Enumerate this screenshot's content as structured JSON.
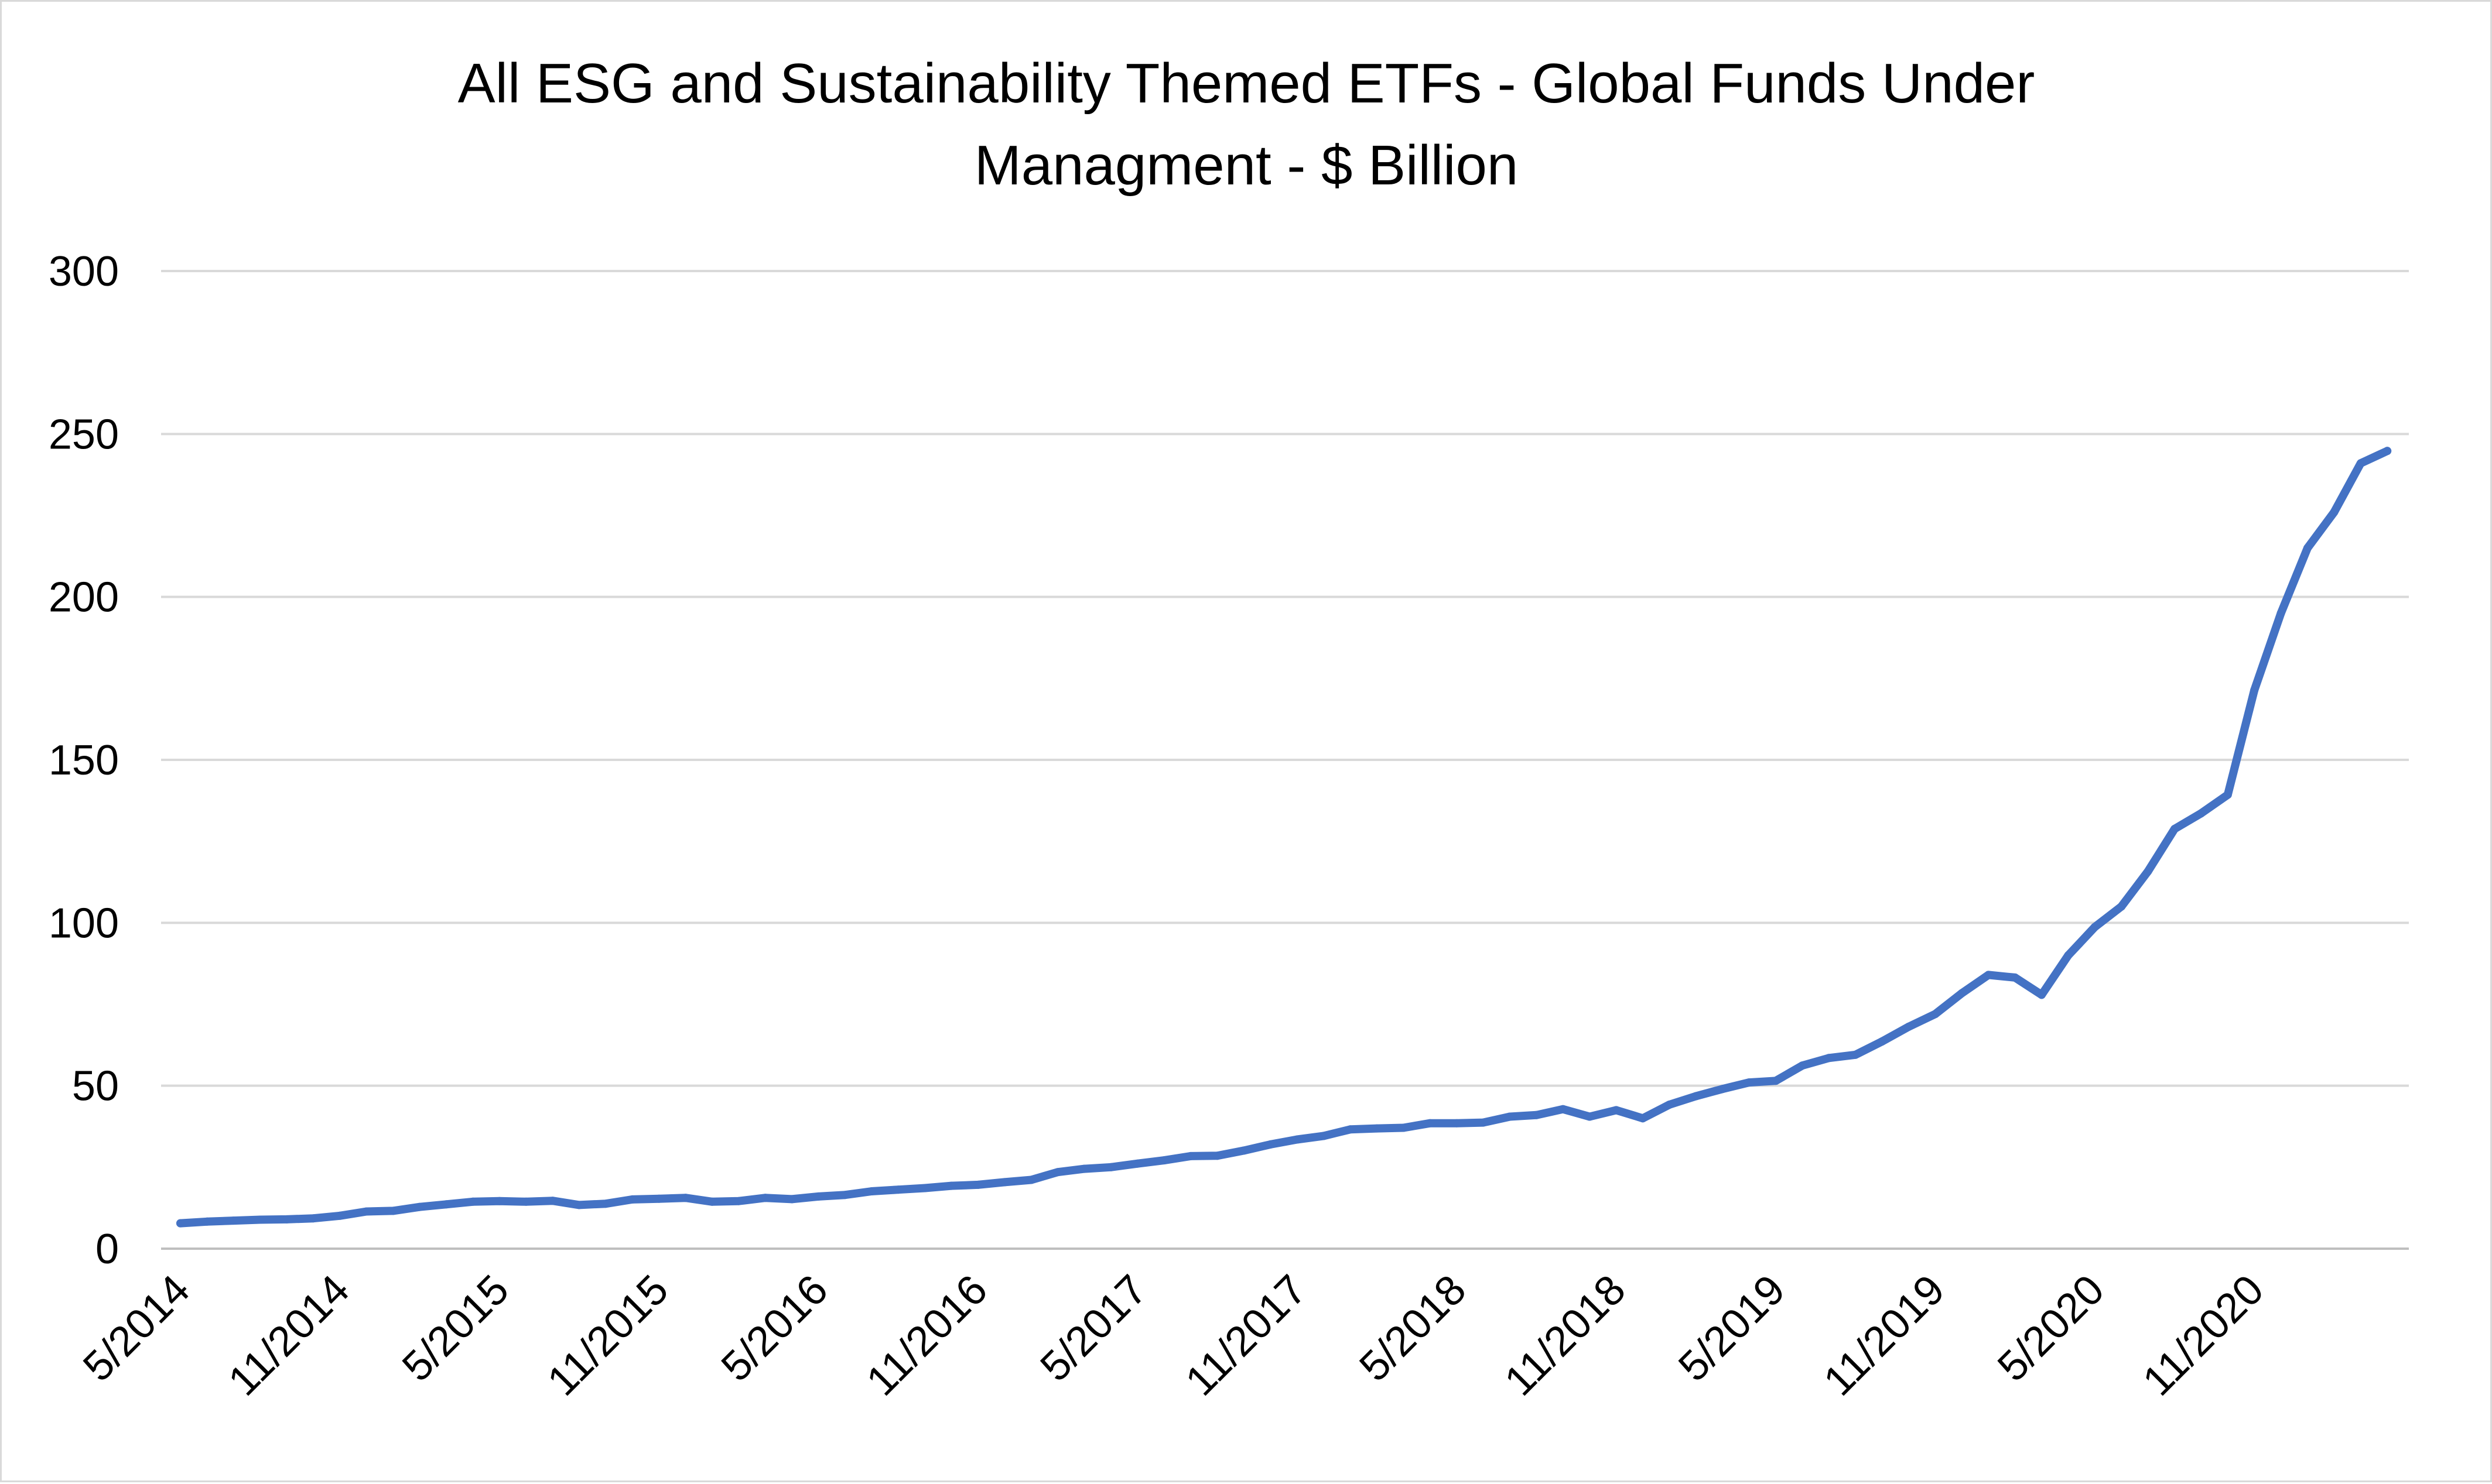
{
  "chart_data": {
    "type": "line",
    "title_line1": "All ESG and Sustainability Themed ETFs - Global Funds Under",
    "title_line2": "Managment - $ Billion",
    "xlabel": "",
    "ylabel": "",
    "ylim": [
      0,
      300
    ],
    "yticks": [
      0,
      50,
      100,
      150,
      200,
      250,
      300
    ],
    "grid": true,
    "legend": "none",
    "x_tick_labels": [
      "5/2014",
      "11/2014",
      "5/2015",
      "11/2015",
      "5/2016",
      "11/2016",
      "5/2017",
      "11/2017",
      "5/2018",
      "11/2018",
      "5/2019",
      "11/2019",
      "5/2020",
      "11/2020"
    ],
    "x_tick_positions": [
      "2014-05",
      "2014-11",
      "2015-05",
      "2015-11",
      "2016-05",
      "2016-11",
      "2017-05",
      "2017-11",
      "2018-05",
      "2018-11",
      "2019-05",
      "2019-11",
      "2020-05",
      "2020-11"
    ],
    "series": [
      {
        "color": "#4472C4",
        "x": [
          "2014-05",
          "2014-06",
          "2014-07",
          "2014-08",
          "2014-09",
          "2014-10",
          "2014-11",
          "2014-12",
          "2015-01",
          "2015-02",
          "2015-03",
          "2015-04",
          "2015-05",
          "2015-06",
          "2015-07",
          "2015-08",
          "2015-09",
          "2015-10",
          "2015-11",
          "2015-12",
          "2016-01",
          "2016-02",
          "2016-03",
          "2016-04",
          "2016-05",
          "2016-06",
          "2016-07",
          "2016-08",
          "2016-09",
          "2016-10",
          "2016-11",
          "2016-12",
          "2017-01",
          "2017-02",
          "2017-03",
          "2017-04",
          "2017-05",
          "2017-06",
          "2017-07",
          "2017-08",
          "2017-09",
          "2017-10",
          "2017-11",
          "2017-12",
          "2018-01",
          "2018-02",
          "2018-03",
          "2018-04",
          "2018-05",
          "2018-06",
          "2018-07",
          "2018-08",
          "2018-09",
          "2018-10",
          "2018-11",
          "2018-12",
          "2019-01",
          "2019-02",
          "2019-03",
          "2019-04",
          "2019-05",
          "2019-06",
          "2019-07",
          "2019-08",
          "2019-09",
          "2019-10",
          "2019-11",
          "2019-12",
          "2020-01",
          "2020-02",
          "2020-03",
          "2020-04",
          "2020-05",
          "2020-06",
          "2020-07",
          "2020-08",
          "2020-09",
          "2020-10",
          "2020-11",
          "2020-12",
          "2021-01",
          "2021-02",
          "2021-03",
          "2021-04"
        ],
        "values": [
          7.8,
          8.3,
          8.6,
          8.9,
          9.0,
          9.3,
          10.1,
          11.4,
          11.6,
          12.8,
          13.6,
          14.4,
          14.6,
          14.4,
          14.7,
          13.4,
          13.8,
          15.1,
          15.3,
          15.6,
          14.4,
          14.6,
          15.6,
          15.2,
          16.0,
          16.5,
          17.6,
          18.1,
          18.6,
          19.3,
          19.6,
          20.4,
          21.1,
          23.5,
          24.5,
          25.0,
          26.1,
          27.1,
          28.4,
          28.5,
          30.1,
          32.0,
          33.5,
          34.6,
          36.6,
          36.9,
          37.1,
          38.5,
          38.5,
          38.7,
          40.5,
          41.0,
          42.8,
          40.5,
          42.5,
          40.0,
          44.2,
          46.8,
          49.0,
          51.0,
          51.5,
          56.2,
          58.5,
          59.5,
          63.6,
          68.1,
          72.0,
          78.4,
          84.0,
          83.2,
          77.9,
          90.0,
          98.7,
          105.0,
          115.8,
          128.8,
          133.6,
          139.3,
          171.4,
          195.0,
          215.0,
          226.0,
          241.0,
          244.8
        ]
      }
    ]
  }
}
